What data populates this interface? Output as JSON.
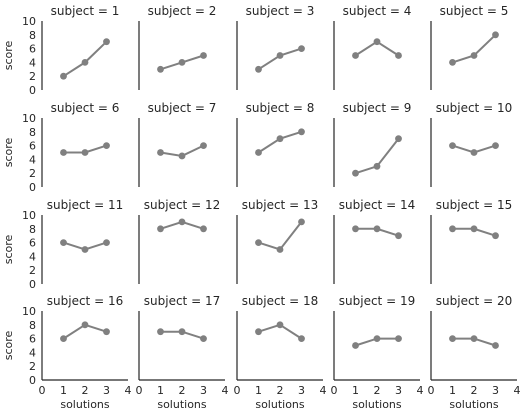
{
  "chart_data": {
    "type": "line",
    "title_prefix": "subject = ",
    "xlabel": "solutions",
    "ylabel": "score",
    "xlim": [
      0,
      4
    ],
    "ylim": [
      0,
      10
    ],
    "xticks": [
      "0",
      "1",
      "2",
      "3",
      "4"
    ],
    "yticks": [
      "0",
      "2",
      "4",
      "6",
      "8",
      "10"
    ],
    "grid": false,
    "series_color": "#808080",
    "x": [
      1,
      2,
      3
    ],
    "panels": [
      {
        "subject": "1",
        "title": "subject = 1",
        "values": [
          2,
          4,
          7
        ]
      },
      {
        "subject": "2",
        "title": "subject = 2",
        "values": [
          3,
          4,
          5
        ]
      },
      {
        "subject": "3",
        "title": "subject = 3",
        "values": [
          3,
          5,
          6
        ]
      },
      {
        "subject": "4",
        "title": "subject = 4",
        "values": [
          5,
          7,
          5
        ]
      },
      {
        "subject": "5",
        "title": "subject = 5",
        "values": [
          4,
          5,
          8
        ]
      },
      {
        "subject": "6",
        "title": "subject = 6",
        "values": [
          5,
          5,
          6
        ]
      },
      {
        "subject": "7",
        "title": "subject = 7",
        "values": [
          5,
          4.5,
          6
        ]
      },
      {
        "subject": "8",
        "title": "subject = 8",
        "values": [
          5,
          7,
          8
        ]
      },
      {
        "subject": "9",
        "title": "subject = 9",
        "values": [
          2,
          3,
          7
        ]
      },
      {
        "subject": "10",
        "title": "subject = 10",
        "values": [
          6,
          5,
          6
        ]
      },
      {
        "subject": "11",
        "title": "subject = 11",
        "values": [
          6,
          5,
          6
        ]
      },
      {
        "subject": "12",
        "title": "subject = 12",
        "values": [
          8,
          9,
          8
        ]
      },
      {
        "subject": "13",
        "title": "subject = 13",
        "values": [
          6,
          5,
          9
        ]
      },
      {
        "subject": "14",
        "title": "subject = 14",
        "values": [
          8,
          8,
          7
        ]
      },
      {
        "subject": "15",
        "title": "subject = 15",
        "values": [
          8,
          8,
          7
        ]
      },
      {
        "subject": "16",
        "title": "subject = 16",
        "values": [
          6,
          8,
          7
        ]
      },
      {
        "subject": "17",
        "title": "subject = 17",
        "values": [
          7,
          7,
          6
        ]
      },
      {
        "subject": "18",
        "title": "subject = 18",
        "values": [
          7,
          8,
          6
        ]
      },
      {
        "subject": "19",
        "title": "subject = 19",
        "values": [
          5,
          6,
          6
        ]
      },
      {
        "subject": "20",
        "title": "subject = 20",
        "values": [
          6,
          6,
          5
        ]
      }
    ]
  }
}
